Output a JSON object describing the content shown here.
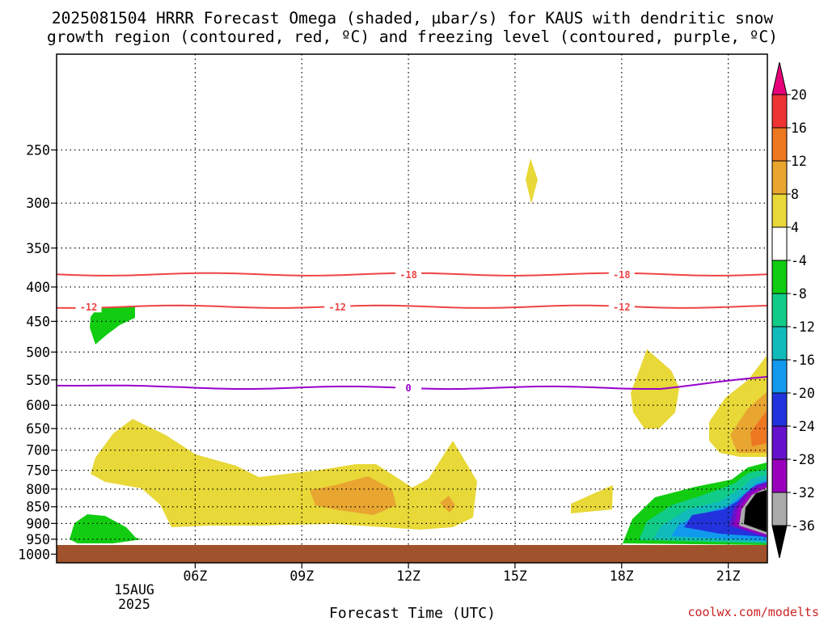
{
  "chart_data": {
    "type": "time-height contour",
    "title_lines": [
      "2025081504 HRRR Forecast Omega (shaded, µbar/s) for KAUS with dendritic snow",
      "growth region (contoured, red, ºC) and freezing level (contoured, purple, ºC)"
    ],
    "xlabel": "Forecast Time (UTC)",
    "x_ticks": [
      "06Z",
      "09Z",
      "12Z",
      "15Z",
      "18Z",
      "21Z"
    ],
    "x_tick_hours": [
      6,
      9,
      12,
      15,
      18,
      21
    ],
    "x_date_label": [
      "15AUG",
      "2025"
    ],
    "xlim_hours": [
      2.1,
      22.1
    ],
    "y_ticks": [
      250,
      300,
      350,
      400,
      450,
      500,
      550,
      600,
      650,
      700,
      750,
      800,
      850,
      900,
      950,
      1000
    ],
    "ylim_hpa": [
      1030,
      180
    ],
    "y_scale": "log-pressure",
    "surface_pressure_hpa": 985,
    "contours": [
      {
        "label": "-18",
        "color": "#ee4444",
        "pressure_hpa": 383,
        "label_hours": [
          12,
          18
        ]
      },
      {
        "label": "-12",
        "color": "#ee4444",
        "pressure_hpa": 428,
        "label_hours": [
          3,
          10,
          18
        ]
      },
      {
        "label": "0",
        "color": "#9900cc",
        "pressure_hpa": 565,
        "label_hours": [
          12
        ]
      }
    ],
    "colorbar": {
      "levels": [
        "20",
        "16",
        "12",
        "8",
        "4",
        "-4",
        "-8",
        "-12",
        "-16",
        "-20",
        "-24",
        "-28",
        "-32",
        "-36"
      ],
      "colors": [
        "#e8007a",
        "#ee3333",
        "#ee7722",
        "#e8a530",
        "#e8d838",
        "#ffffff",
        "#11cc11",
        "#11cc88",
        "#11bbbb",
        "#1199ee",
        "#2233dd",
        "#6611cc",
        "#9900bb",
        "#aaaaaa",
        "#000000"
      ]
    },
    "omega_regions_description_colors": {
      "positive_4_8": "#e8d838",
      "positive_8_12": "#e8a530",
      "positive_12_16": "#ee7722",
      "negative": "#11cc11"
    },
    "credit": "coolwx.com/modelts"
  }
}
